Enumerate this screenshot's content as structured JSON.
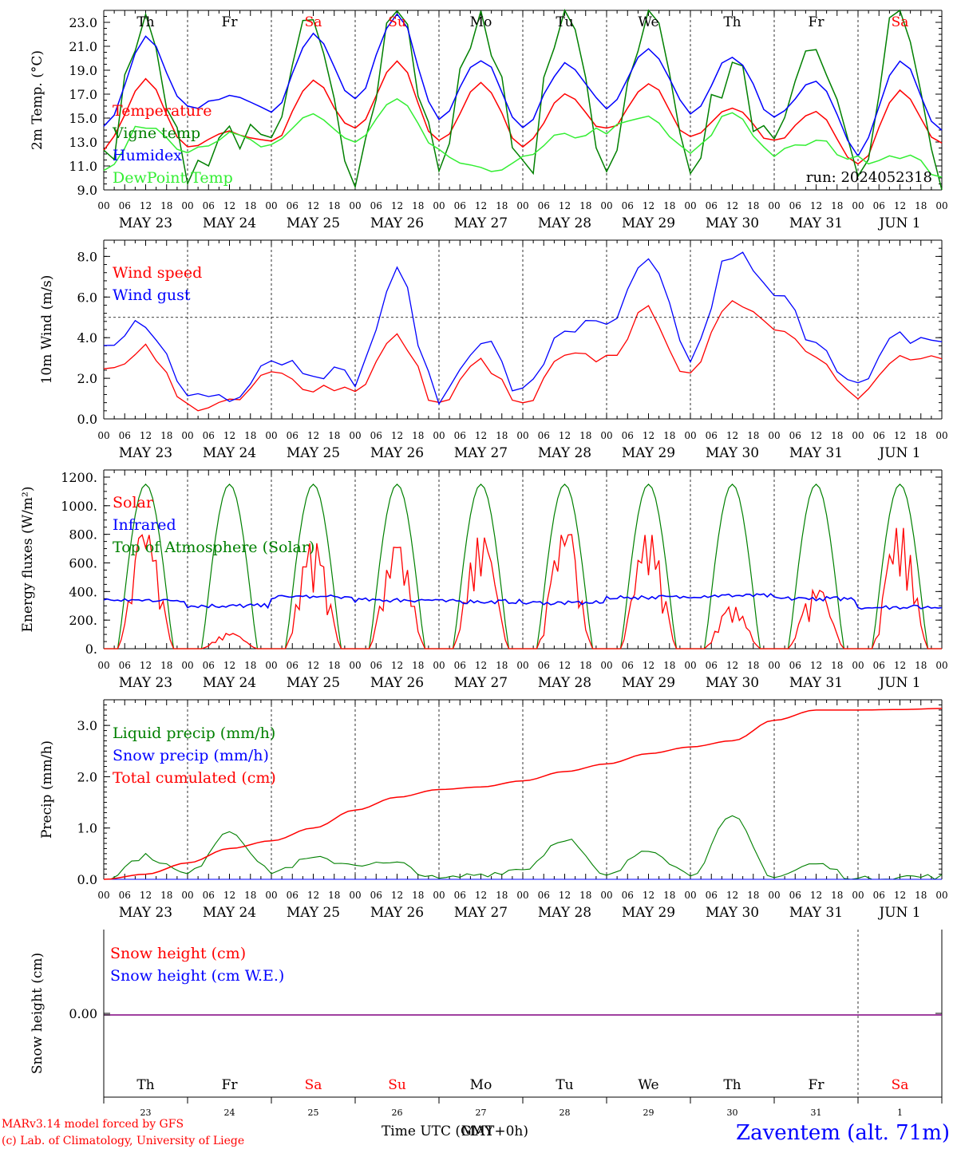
{
  "run_label": "run: 2024052318",
  "credits": [
    "MARv3.14 model forced by GFS",
    "(c) Lab. of Climatology, University of Liege"
  ],
  "station": "Zaventem (alt. 71m)",
  "xlabel": "Time UTC (GMT+0h)",
  "overlap_xlabel": "MAY",
  "hour_ticks": [
    "00",
    "06",
    "12",
    "18"
  ],
  "final_hour_tick": "00",
  "date_labels": [
    "MAY 23",
    "MAY 24",
    "MAY 25",
    "MAY 26",
    "MAY 27",
    "MAY 28",
    "MAY 29",
    "MAY 30",
    "MAY 31",
    "JUN  1"
  ],
  "weekdays": [
    "Th",
    "Fr",
    "Sa",
    "Su",
    "Mo",
    "Tu",
    "We",
    "Th",
    "Fr",
    "Sa"
  ],
  "weekend_flags": [
    false,
    false,
    true,
    true,
    false,
    false,
    false,
    false,
    false,
    true
  ],
  "day_numbers": [
    "23",
    "24",
    "25",
    "26",
    "27",
    "28",
    "29",
    "30",
    "31",
    "1"
  ],
  "colors": {
    "red": "#ff0000",
    "blue": "#0000ff",
    "green": "#008000",
    "lightgreen": "#33ee33",
    "purple": "#800080",
    "grid": "#000000"
  },
  "chart_data": [
    {
      "type": "line",
      "ylabel": "2m Temp. (°C)",
      "ylim": [
        9,
        24
      ],
      "yticks": [
        "9.0",
        "11.0",
        "13.0",
        "15.0",
        "17.0",
        "19.0",
        "21.0",
        "23.0"
      ],
      "x_days": [
        0,
        0.5,
        1,
        1.5,
        2,
        2.5,
        3,
        3.5,
        4,
        4.5,
        5,
        5.5,
        6,
        6.5,
        7,
        7.5,
        8,
        8.5,
        9,
        9.5,
        10
      ],
      "series": [
        {
          "name": "Temperature",
          "color": "red",
          "values": [
            12.5,
            18.2,
            12.5,
            13.8,
            13.0,
            18.0,
            14.0,
            19.6,
            13.0,
            18.0,
            12.5,
            17.0,
            14.0,
            17.8,
            13.5,
            15.9,
            13.0,
            15.5,
            11.0,
            17.3,
            12.8
          ]
        },
        {
          "name": "Vigne temp",
          "color": "green",
          "values": [
            11.0,
            24.0,
            10.5,
            14.0,
            12.0,
            24.0,
            11.0,
            24.0,
            11.5,
            24.0,
            10.0,
            24.0,
            11.5,
            24.0,
            12.0,
            19.0,
            12.0,
            21.0,
            10.5,
            24.0,
            9.5
          ]
        },
        {
          "name": "Humidex",
          "color": "blue",
          "values": [
            14.2,
            21.6,
            15.8,
            16.9,
            15.5,
            22.0,
            16.5,
            23.8,
            15.0,
            20.0,
            14.0,
            19.5,
            16.0,
            21.0,
            15.5,
            20.2,
            15.0,
            18.3,
            12.0,
            19.9,
            14.1
          ]
        },
        {
          "name": "DewPoint Temp",
          "color": "lightgreen",
          "values": [
            10.5,
            14.5,
            12.5,
            13.5,
            12.5,
            15.3,
            13.0,
            16.5,
            12.0,
            10.5,
            11.5,
            13.5,
            14.0,
            15.0,
            12.0,
            15.5,
            12.0,
            13.0,
            11.5,
            12.0,
            10.3
          ]
        }
      ]
    },
    {
      "type": "line",
      "ylabel": "10m Wind (m/s)",
      "ylim": [
        0,
        8.8
      ],
      "yticks": [
        "0.0",
        "2.0",
        "4.0",
        "6.0",
        "8.0"
      ],
      "reference_line": 5.0,
      "x_days": [
        0,
        0.5,
        1,
        1.5,
        2,
        2.5,
        3,
        3.5,
        4,
        4.5,
        5,
        5.5,
        6,
        6.5,
        7,
        7.5,
        8,
        8.5,
        9,
        9.5,
        10
      ],
      "series": [
        {
          "name": "Wind speed",
          "color": "red",
          "values": [
            2.2,
            3.6,
            0.6,
            0.7,
            2.2,
            1.6,
            1.5,
            4.0,
            0.7,
            2.8,
            0.6,
            3.0,
            3.0,
            5.3,
            2.0,
            6.0,
            4.6,
            3.3,
            1.0,
            3.0,
            2.8
          ]
        },
        {
          "name": "Wind gust",
          "color": "blue",
          "values": [
            3.2,
            4.8,
            1.2,
            1.2,
            3.0,
            2.5,
            2.0,
            7.1,
            1.0,
            4.0,
            1.2,
            4.5,
            4.5,
            7.6,
            3.0,
            8.2,
            6.1,
            4.0,
            1.5,
            4.0,
            3.9
          ]
        }
      ]
    },
    {
      "type": "line",
      "ylabel": "Energy fluxes (W/m²)",
      "ylim": [
        0,
        1250
      ],
      "yticks": [
        "0.",
        "200.",
        "400.",
        "600.",
        "800.",
        "1000.",
        "1200."
      ],
      "solar_daily_peaks": [
        820,
        110,
        760,
        730,
        800,
        820,
        820,
        300,
        420,
        870
      ],
      "toa_daily_peak": 1150,
      "infrared_daily": [
        340,
        300,
        360,
        340,
        330,
        320,
        360,
        370,
        350,
        290
      ],
      "series": [
        {
          "name": "Solar",
          "color": "red"
        },
        {
          "name": "Infrared",
          "color": "blue"
        },
        {
          "name": "Top of Atmosphere (Solar)",
          "color": "green"
        }
      ]
    },
    {
      "type": "line",
      "ylabel": "Precip (mm/h)",
      "ylim": [
        0,
        3.5
      ],
      "yticks": [
        "0.0",
        "1.0",
        "2.0",
        "3.0"
      ],
      "x_days": [
        0,
        0.5,
        1,
        1.5,
        2,
        2.5,
        3,
        3.5,
        4,
        4.5,
        5,
        5.5,
        6,
        6.5,
        7,
        7.5,
        8,
        8.5,
        9,
        9.5,
        10
      ],
      "series": [
        {
          "name": "Liquid precip (mm/h)",
          "color": "green",
          "values": [
            0,
            0.45,
            0.1,
            0.95,
            0.15,
            0.4,
            0.3,
            0.3,
            0,
            0.1,
            0.2,
            0.8,
            0.05,
            0.6,
            0.1,
            1.2,
            0.05,
            0.3,
            0,
            0.05,
            0.05
          ]
        },
        {
          "name": "Snow precip (mm/h)",
          "color": "blue",
          "values": [
            0,
            0,
            0,
            0,
            0,
            0,
            0,
            0,
            0,
            0,
            0,
            0,
            0,
            0,
            0,
            0,
            0,
            0,
            0,
            0,
            0
          ]
        },
        {
          "name": "Total cumulated (cm)",
          "color": "red",
          "values": [
            0,
            0.1,
            0.32,
            0.6,
            0.75,
            1.0,
            1.35,
            1.6,
            1.75,
            1.8,
            1.92,
            2.1,
            2.25,
            2.45,
            2.58,
            2.7,
            3.1,
            3.3,
            3.3,
            3.31,
            3.33
          ]
        }
      ]
    },
    {
      "type": "line",
      "ylabel": "Snow height (cm)",
      "yticks": [
        "0.00"
      ],
      "series": [
        {
          "name": "Snow height (cm)",
          "color": "red",
          "values": [
            0,
            0
          ]
        },
        {
          "name": "Snow height (cm W.E.)",
          "color": "blue",
          "values": [
            0,
            0
          ]
        }
      ]
    }
  ]
}
